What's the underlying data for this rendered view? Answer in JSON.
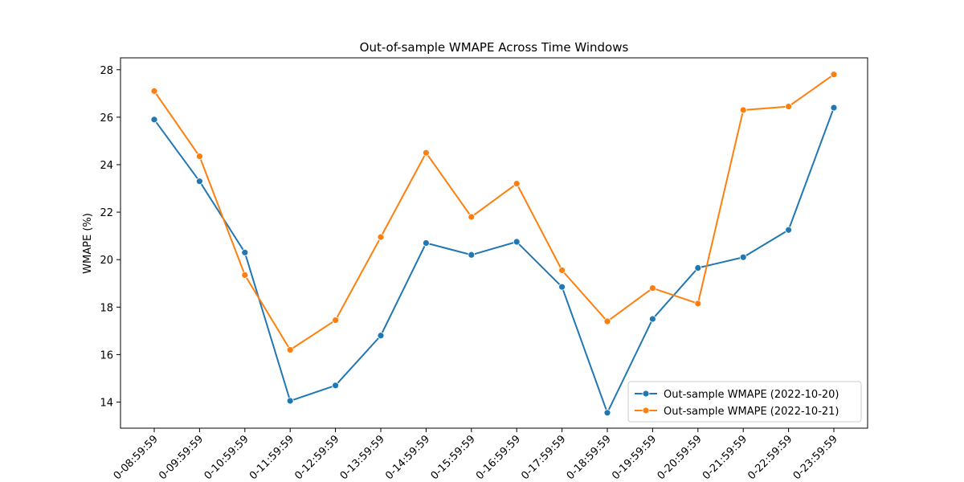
{
  "chart_data": {
    "type": "line",
    "title": "Out-of-sample WMAPE Across Time Windows",
    "xlabel": "",
    "ylabel": "WMAPE (%)",
    "categories": [
      "0-08:59:59",
      "0-09:59:59",
      "0-10:59:59",
      "0-11:59:59",
      "0-12:59:59",
      "0-13:59:59",
      "0-14:59:59",
      "0-15:59:59",
      "0-16:59:59",
      "0-17:59:59",
      "0-18:59:59",
      "0-19:59:59",
      "0-20:59:59",
      "0-21:59:59",
      "0-22:59:59",
      "0-23:59:59"
    ],
    "ylim": [
      12.9,
      28.5
    ],
    "yticks": [
      14,
      16,
      18,
      20,
      22,
      24,
      26,
      28
    ],
    "grid": false,
    "legend_position": "lower-right",
    "series": [
      {
        "name": "Out-sample WMAPE (2022-10-20)",
        "color": "#1f77b4",
        "values": [
          25.9,
          23.3,
          20.3,
          14.05,
          14.7,
          16.8,
          20.7,
          20.2,
          20.75,
          18.85,
          13.55,
          17.5,
          19.65,
          20.1,
          21.25,
          26.4
        ]
      },
      {
        "name": "Out-sample WMAPE (2022-10-21)",
        "color": "#ff7f0e",
        "values": [
          27.1,
          24.35,
          19.35,
          16.2,
          17.45,
          20.95,
          24.5,
          21.8,
          23.2,
          19.55,
          17.4,
          18.8,
          18.15,
          26.3,
          26.45,
          27.8
        ]
      }
    ]
  }
}
